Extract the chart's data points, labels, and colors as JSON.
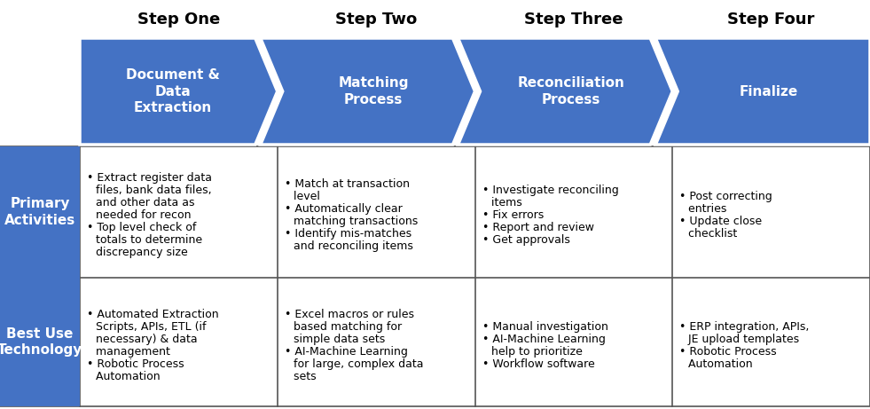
{
  "background_color": "#ffffff",
  "arrow_color": "#4472C4",
  "steps": [
    "Step One",
    "Step Two",
    "Step Three",
    "Step Four"
  ],
  "arrow_labels": [
    "Document &\nData\nExtraction",
    "Matching\nProcess",
    "Reconciliation\nProcess",
    "Finalize"
  ],
  "row_labels": [
    "Primary\nActivities",
    "Best Use\nTechnology"
  ],
  "row_label_color": "#ffffff",
  "row_label_bg": "#4472C4",
  "border_color": "#555555",
  "table_data": [
    [
      "Extract register data\nfiles, bank data files,\nand other data as\nneeded for recon\n\nTop level check of\ntotals to determine\ndiscrepancy size",
      "Match at transaction\nlevel\nAutomatically clear\nmatching transactions\nIdentify mis-matches\nand reconciling items",
      "Investigate reconciling\nitems\nFix errors\nReport and review\nGet approvals",
      "Post correcting\nentries\nUpdate close\nchecklist"
    ],
    [
      "Automated Extraction\nScripts, APIs, ETL (if\nnecessary) & data\nmanagement\n\nRobotic Process\nAutomation",
      "Excel macros or rules\nbased matching for\nsimple data sets\nAI-Machine Learning\nfor large, complex data\nsets",
      "Manual investigation\nAI-Machine Learning\nhelp to prioritize\nWorkflow software",
      "ERP integration, APIs,\nJE upload templates\nRobotic Process\nAutomation"
    ]
  ],
  "bullet_rows": [
    [
      [
        0,
        4
      ],
      [
        0,
        1,
        2
      ],
      [
        0,
        1,
        2,
        3
      ],
      [
        0,
        1,
        2
      ]
    ],
    [
      [
        0,
        4
      ],
      [
        0,
        3
      ],
      [
        0,
        1,
        2
      ],
      [
        0,
        1,
        2
      ]
    ]
  ],
  "step_fontsize": 13,
  "arrow_label_fontsize": 11,
  "row_label_fontsize": 11,
  "cell_fontsize": 9,
  "fig_width": 9.81,
  "fig_height": 4.61
}
